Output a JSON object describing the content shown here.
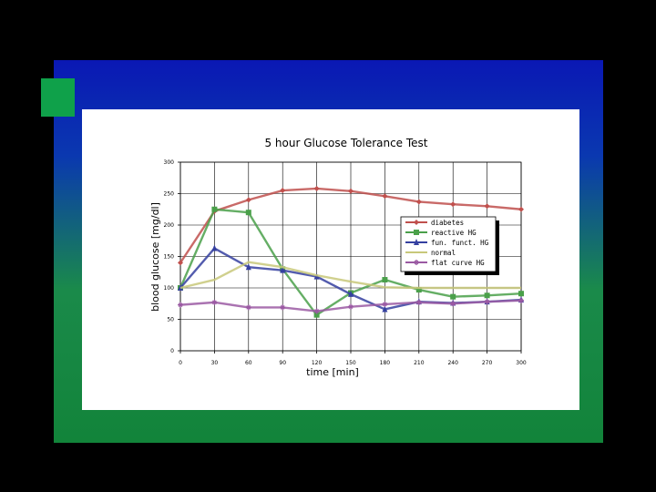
{
  "colors": {
    "background": "#000000",
    "slide_top": "#0a18b4",
    "slide_bottom": "#12843a",
    "accent_square": "#0fa14a",
    "panel": "#ffffff"
  },
  "chart_data": {
    "type": "line",
    "title": "5 hour Glucose Tolerance Test",
    "xlabel": "time [min]",
    "ylabel": "blood glucose [mg/dl]",
    "xlim": [
      0,
      300
    ],
    "ylim": [
      0,
      300
    ],
    "x_ticks": [
      0,
      30,
      60,
      90,
      120,
      150,
      180,
      210,
      240,
      270,
      300
    ],
    "y_ticks": [
      0,
      50,
      100,
      150,
      200,
      250,
      300
    ],
    "grid": true,
    "legend_position": "right",
    "x": [
      0,
      30,
      60,
      90,
      120,
      150,
      180,
      210,
      240,
      270,
      300
    ],
    "series": [
      {
        "name": "diabetes",
        "color": "#c0504d",
        "marker": "diamond",
        "values": [
          140,
          222,
          240,
          255,
          258,
          254,
          246,
          237,
          233,
          230,
          225
        ]
      },
      {
        "name": "reactive HG",
        "color": "#4aa04a",
        "marker": "square",
        "values": [
          100,
          225,
          220,
          130,
          57,
          92,
          113,
          97,
          86,
          88,
          91
        ]
      },
      {
        "name": "fun. funct. HG",
        "color": "#3540a0",
        "marker": "triangle",
        "values": [
          100,
          163,
          133,
          128,
          118,
          90,
          66,
          78,
          76,
          78,
          81
        ]
      },
      {
        "name": "normal",
        "color": "#c8c87a",
        "marker": "none",
        "values": [
          100,
          113,
          141,
          133,
          120,
          110,
          101,
          100,
          100,
          100,
          100
        ]
      },
      {
        "name": "flat curve HG",
        "color": "#9b5aa3",
        "marker": "star",
        "values": [
          73,
          77,
          69,
          69,
          63,
          70,
          74,
          77,
          75,
          78,
          80
        ]
      }
    ]
  }
}
